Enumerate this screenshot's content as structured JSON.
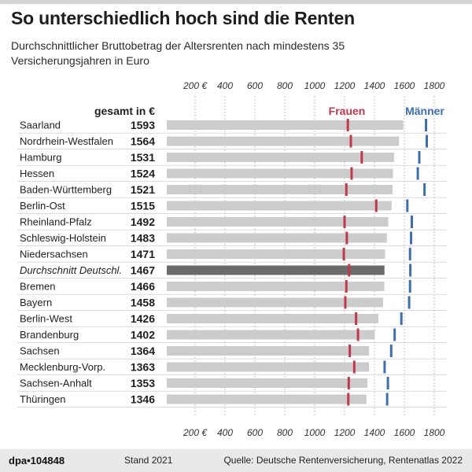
{
  "header": {
    "title": "So unterschiedlich hoch sind die Renten",
    "subtitle": "Durchschnittlicher Bruttobetrag der Altersrenten nach mindestens 35 Versicherungsjahren in Euro"
  },
  "footer": {
    "agency": "dpa•104848",
    "stand": "Stand 2021",
    "source": "Quelle: Deutsche Rentenversicherung, Rentenatlas 2022"
  },
  "colors": {
    "bar": "#cccccc",
    "bar_highlight": "#6b6b6b",
    "women": "#c0394b",
    "men": "#3d6fae",
    "grid": "#b5b5b5"
  },
  "chart_data": {
    "type": "bar",
    "orientation": "horizontal",
    "value_header": "gesamt in €",
    "xlim": [
      0,
      1850
    ],
    "ticks": [
      {
        "value": 200,
        "label": "200 €"
      },
      {
        "value": 400,
        "label": "400"
      },
      {
        "value": 600,
        "label": "600"
      },
      {
        "value": 800,
        "label": "800"
      },
      {
        "value": 1000,
        "label": "1000"
      },
      {
        "value": 1200,
        "label": "1200"
      },
      {
        "value": 1400,
        "label": "1400"
      },
      {
        "value": 1600,
        "label": "1600"
      },
      {
        "value": 1800,
        "label": "1800"
      }
    ],
    "grid": true,
    "legend": {
      "women": "Frauen",
      "men": "Männer"
    },
    "rows": [
      {
        "name": "Saarland",
        "value": 1593,
        "women": 1222,
        "men": 1745
      },
      {
        "name": "Nordrhein-Westfalen",
        "value": 1564,
        "women": 1242,
        "men": 1750
      },
      {
        "name": "Hamburg",
        "value": 1531,
        "women": 1315,
        "men": 1700
      },
      {
        "name": "Hessen",
        "value": 1524,
        "women": 1247,
        "men": 1690
      },
      {
        "name": "Baden-Württemberg",
        "value": 1521,
        "women": 1212,
        "men": 1735
      },
      {
        "name": "Berlin-Ost",
        "value": 1515,
        "women": 1412,
        "men": 1620
      },
      {
        "name": "Rheinland-Pfalz",
        "value": 1492,
        "women": 1200,
        "men": 1650
      },
      {
        "name": "Schleswig-Holstein",
        "value": 1483,
        "women": 1215,
        "men": 1645
      },
      {
        "name": "Niedersachsen",
        "value": 1471,
        "women": 1195,
        "men": 1638
      },
      {
        "name": "Durchschnitt Deutschl.",
        "value": 1467,
        "women": 1230,
        "men": 1640,
        "highlight": true
      },
      {
        "name": "Bremen",
        "value": 1466,
        "women": 1212,
        "men": 1638
      },
      {
        "name": "Bayern",
        "value": 1458,
        "women": 1205,
        "men": 1632
      },
      {
        "name": "Berlin-West",
        "value": 1426,
        "women": 1277,
        "men": 1580
      },
      {
        "name": "Brandenburg",
        "value": 1402,
        "women": 1290,
        "men": 1535
      },
      {
        "name": "Sachsen",
        "value": 1364,
        "women": 1235,
        "men": 1512
      },
      {
        "name": "Mecklenburg-Vorp.",
        "value": 1363,
        "women": 1265,
        "men": 1468
      },
      {
        "name": "Sachsen-Anhalt",
        "value": 1353,
        "women": 1228,
        "men": 1490
      },
      {
        "name": "Thüringen",
        "value": 1346,
        "women": 1225,
        "men": 1485
      }
    ]
  }
}
